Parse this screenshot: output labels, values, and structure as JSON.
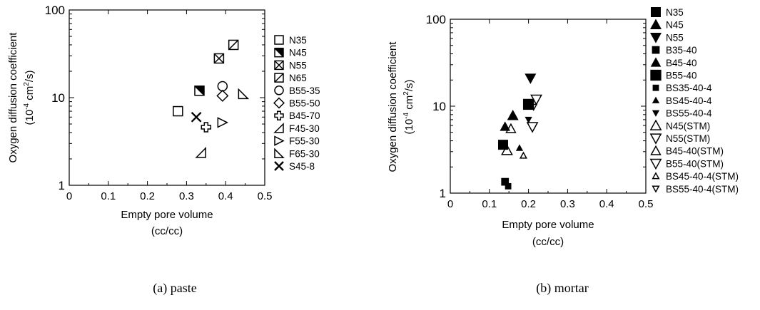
{
  "chart_data": [
    {
      "type": "scatter",
      "caption": "(a) paste",
      "xlabel_line1": "Empty pore volume",
      "xlabel_line2": "(cc/cc)",
      "ylabel_line1": "Oxygen diffusion coefficient",
      "ylabel_pre": "(10",
      "ylabel_exp1": "-4",
      "ylabel_mid": " cm",
      "ylabel_exp2": "2",
      "ylabel_post": "/s)",
      "xlim": [
        0,
        0.5
      ],
      "ylim": [
        1,
        100
      ],
      "yscale": "log",
      "x_ticks": [
        "0",
        "0.1",
        "0.2",
        "0.3",
        "0.4",
        "0.5"
      ],
      "y_ticks": [
        "1",
        "10",
        "100"
      ],
      "legend_position": "right",
      "series": [
        {
          "name": "N35",
          "marker": "square-open",
          "points": [
            [
              0.278,
              7.0
            ]
          ]
        },
        {
          "name": "N45",
          "marker": "square-half",
          "points": [
            [
              0.333,
              12.0
            ]
          ]
        },
        {
          "name": "N55",
          "marker": "square-x",
          "points": [
            [
              0.383,
              28.0
            ]
          ]
        },
        {
          "name": "N65",
          "marker": "square-diag",
          "points": [
            [
              0.42,
              40.0
            ]
          ]
        },
        {
          "name": "B55-35",
          "marker": "circle-open",
          "points": [
            [
              0.392,
              13.5
            ]
          ]
        },
        {
          "name": "B55-50",
          "marker": "diamond-open",
          "points": [
            [
              0.392,
              10.5
            ]
          ]
        },
        {
          "name": "B45-70",
          "marker": "cross-open",
          "points": [
            [
              0.35,
              4.6
            ]
          ]
        },
        {
          "name": "F45-30",
          "marker": "tri-bl",
          "points": [
            [
              0.337,
              2.35
            ]
          ]
        },
        {
          "name": "F55-30",
          "marker": "tri-right",
          "points": [
            [
              0.392,
              5.2
            ]
          ]
        },
        {
          "name": "F65-30",
          "marker": "tri-br",
          "points": [
            [
              0.445,
              11.0
            ]
          ]
        },
        {
          "name": "S45-8",
          "marker": "x",
          "points": [
            [
              0.325,
              6.0
            ]
          ]
        }
      ]
    },
    {
      "type": "scatter",
      "caption": "(b) mortar",
      "xlabel_line1": "Empty pore volume",
      "xlabel_line2": "(cc/cc)",
      "ylabel_line1": "Oxygen diffusion coefficient",
      "ylabel_pre": "(10",
      "ylabel_exp1": "-4",
      "ylabel_mid": " cm",
      "ylabel_exp2": "2",
      "ylabel_post": "/s)",
      "xlim": [
        0,
        0.5
      ],
      "ylim": [
        1,
        100
      ],
      "yscale": "log",
      "x_ticks": [
        "0",
        "0.1",
        "0.2",
        "0.3",
        "0.4",
        "0.5"
      ],
      "y_ticks": [
        "1",
        "10",
        "100"
      ],
      "legend_position": "right",
      "series": [
        {
          "name": "N35",
          "marker": "square-filled",
          "size": 1.0,
          "points": [
            [
              0.135,
              3.6
            ]
          ]
        },
        {
          "name": "N45",
          "marker": "tri-up-filled",
          "size": 1.0,
          "points": [
            [
              0.16,
              7.8
            ]
          ]
        },
        {
          "name": "N55",
          "marker": "tri-down-filled",
          "size": 1.0,
          "points": [
            [
              0.205,
              21.0
            ]
          ]
        },
        {
          "name": "B35-40",
          "marker": "square-filled",
          "size": 0.75,
          "points": [
            [
              0.14,
              1.35
            ]
          ]
        },
        {
          "name": "B45-40",
          "marker": "tri-up-filled",
          "size": 0.9,
          "points": [
            [
              0.14,
              5.8
            ]
          ]
        },
        {
          "name": "B55-40",
          "marker": "square-filled",
          "size": 1.1,
          "points": [
            [
              0.2,
              10.5
            ]
          ]
        },
        {
          "name": "BS35-40-4",
          "marker": "square-filled",
          "size": 0.6,
          "points": [
            [
              0.148,
              1.2
            ]
          ]
        },
        {
          "name": "BS45-40-4",
          "marker": "tri-up-filled",
          "size": 0.6,
          "points": [
            [
              0.177,
              3.3
            ]
          ]
        },
        {
          "name": "BS55-40-4",
          "marker": "tri-down-filled",
          "size": 0.6,
          "points": [
            [
              0.2,
              7.0
            ]
          ]
        },
        {
          "name": "N45(STM)",
          "marker": "tri-up-open",
          "size": 1.0,
          "points": [
            [
              0.145,
              3.1
            ]
          ]
        },
        {
          "name": "N55(STM)",
          "marker": "tri-down-open",
          "size": 1.0,
          "points": [
            [
              0.21,
              5.8
            ]
          ]
        },
        {
          "name": "B45-40(STM)",
          "marker": "tri-up-open",
          "size": 0.9,
          "points": [
            [
              0.155,
              5.5
            ]
          ]
        },
        {
          "name": "B55-40(STM)",
          "marker": "tri-down-open",
          "size": 1.0,
          "points": [
            [
              0.22,
              12.0
            ]
          ]
        },
        {
          "name": "BS45-40-4(STM)",
          "marker": "tri-up-open",
          "size": 0.6,
          "points": [
            [
              0.187,
              2.7
            ]
          ]
        },
        {
          "name": "BS55-40-4(STM)",
          "marker": "tri-down-open",
          "size": 0.6,
          "points": [
            [
              0.213,
              9.8
            ]
          ]
        }
      ]
    }
  ]
}
